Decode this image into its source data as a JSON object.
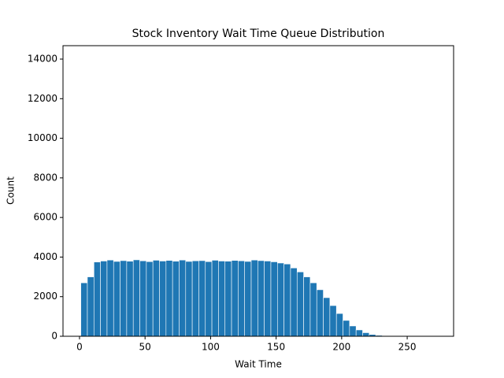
{
  "chart_data": {
    "type": "histogram",
    "title": "Stock Inventory Wait Time Queue Distribution",
    "x_label": "Wait Time",
    "y_label": "Count",
    "bins": [
      1,
      6,
      11,
      16,
      21,
      26,
      31,
      36,
      41,
      46,
      51,
      56,
      61,
      66,
      71,
      76,
      81,
      86,
      91,
      96,
      101,
      106,
      111,
      116,
      121,
      126,
      131,
      136,
      141,
      146,
      151,
      156,
      161,
      166,
      171,
      176,
      181,
      186,
      191,
      196,
      201,
      206,
      211,
      216,
      221,
      226,
      231,
      236,
      241,
      246,
      251,
      256,
      261,
      266,
      271
    ],
    "counts": [
      2700,
      3000,
      3750,
      3800,
      3850,
      3780,
      3820,
      3790,
      3860,
      3810,
      3770,
      3840,
      3800,
      3830,
      3790,
      3850,
      3780,
      3810,
      3820,
      3770,
      3840,
      3800,
      3790,
      3830,
      3810,
      3780,
      3850,
      3820,
      3800,
      3760,
      3700,
      3650,
      3450,
      3250,
      3000,
      2700,
      2350,
      1950,
      1550,
      1150,
      800,
      520,
      320,
      180,
      90,
      45,
      20,
      8,
      4,
      2,
      1,
      1,
      0,
      1
    ],
    "color": "#1f77b4",
    "xlim": [
      -12.6,
      285.4
    ],
    "xticks": [
      0,
      50,
      100,
      150,
      200,
      250
    ],
    "ylim": [
      0,
      14677
    ],
    "yticks": [
      0,
      2000,
      4000,
      6000,
      8000,
      10000,
      12000,
      14000
    ]
  }
}
